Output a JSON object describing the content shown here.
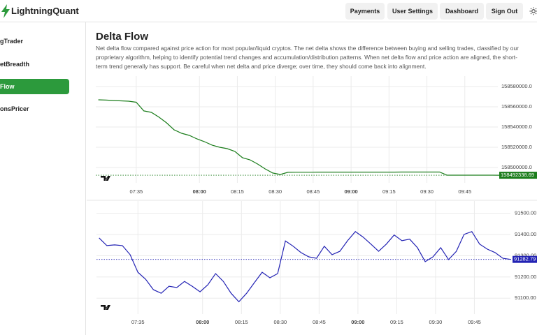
{
  "header": {
    "brand": "LightningQuant",
    "nav": [
      "Payments",
      "User Settings",
      "Dashboard",
      "Sign Out"
    ]
  },
  "sidebar": {
    "items": [
      "gTrader",
      "etBreadth",
      "Flow",
      "onsPricer"
    ]
  },
  "page": {
    "title": "Delta Flow",
    "description": "Net delta flow compared against price action for most popular/liquid cryptos. The net delta shows the difference between buying and selling trades, classified by our proprietary algorithm, helping to identify potential trend changes and accumulation/distribution patterns. When net delta flow and price action are aligned, the short-term trend generally has support. Be careful when net delta and price diverge; over time, they should come back into alignment."
  },
  "chart_data": [
    {
      "type": "line",
      "x": [
        "07:20",
        "07:23",
        "07:26",
        "07:29",
        "07:32",
        "07:35",
        "07:38",
        "07:41",
        "07:44",
        "07:47",
        "07:50",
        "07:53",
        "07:56",
        "07:59",
        "08:02",
        "08:05",
        "08:08",
        "08:11",
        "08:14",
        "08:17",
        "08:20",
        "08:23",
        "08:26",
        "08:29",
        "08:32",
        "08:35",
        "08:38",
        "08:41",
        "08:44",
        "08:47",
        "08:50",
        "08:53",
        "08:56",
        "08:59",
        "09:02",
        "09:05",
        "09:08",
        "09:11",
        "09:14",
        "09:17",
        "09:20",
        "09:23",
        "09:26",
        "09:29",
        "09:32",
        "09:35",
        "09:38",
        "09:41",
        "09:44",
        "09:47",
        "09:50",
        "09:53",
        "09:56",
        "09:59"
      ],
      "series": [
        {
          "color": "#1b7d1b",
          "values": [
            158566900,
            158566600,
            158566200,
            158565900,
            158565500,
            158564500,
            158555900,
            158554500,
            158549700,
            158544100,
            158537200,
            158533800,
            158531700,
            158528300,
            158525500,
            158522100,
            158520000,
            158518600,
            158515900,
            158509700,
            158507600,
            158503400,
            158498600,
            158494500,
            158493100,
            158495200,
            158495300,
            158495300,
            158495300,
            158495400,
            158495400,
            158495400,
            158495400,
            158495400,
            158495400,
            158495400,
            158495400,
            158495400,
            158495400,
            158495400,
            158495500,
            158495500,
            158495500,
            158495500,
            158495500,
            158495500,
            158492400,
            158492400,
            158492400,
            158492400,
            158492400,
            158492400,
            158492400,
            158492338.69
          ]
        }
      ],
      "xlim": [
        "07:19",
        "10:00"
      ],
      "xticks": [
        "07:35",
        "08:00",
        "08:15",
        "08:30",
        "08:45",
        "09:00",
        "09:15",
        "09:30",
        "09:45"
      ],
      "ylim": [
        158484800,
        158587600
      ],
      "yticks": [
        {
          "value": 158500000,
          "label": "158500000.0"
        },
        {
          "value": 158520000,
          "label": "158520000.0"
        },
        {
          "value": 158540000,
          "label": "158540000.0"
        },
        {
          "value": 158560000,
          "label": "158560000.0"
        },
        {
          "value": 158580000,
          "label": "158580000.0"
        }
      ],
      "grid": true
    },
    {
      "type": "line",
      "x": [
        "07:20",
        "07:23",
        "07:26",
        "07:29",
        "07:32",
        "07:35",
        "07:38",
        "07:41",
        "07:44",
        "07:47",
        "07:50",
        "07:53",
        "07:56",
        "07:59",
        "08:02",
        "08:05",
        "08:08",
        "08:11",
        "08:14",
        "08:17",
        "08:20",
        "08:23",
        "08:26",
        "08:29",
        "08:32",
        "08:35",
        "08:38",
        "08:41",
        "08:44",
        "08:47",
        "08:50",
        "08:53",
        "08:56",
        "08:59",
        "09:02",
        "09:05",
        "09:08",
        "09:11",
        "09:14",
        "09:17",
        "09:20",
        "09:23",
        "09:26",
        "09:29",
        "09:32",
        "09:35",
        "09:38",
        "09:41",
        "09:44",
        "09:47",
        "09:50",
        "09:53",
        "09:56",
        "09:59"
      ],
      "series": [
        {
          "color": "#2323b4",
          "values": [
            91384,
            91348,
            91351,
            91348,
            91305,
            91222,
            91189,
            91140,
            91123,
            91156,
            91150,
            91179,
            91156,
            91130,
            91163,
            91216,
            91179,
            91123,
            91083,
            91123,
            91173,
            91222,
            91196,
            91216,
            91370,
            91345,
            91315,
            91295,
            91288,
            91345,
            91305,
            91321,
            91371,
            91414,
            91388,
            91355,
            91321,
            91355,
            91398,
            91371,
            91378,
            91338,
            91272,
            91295,
            91338,
            91282,
            91321,
            91401,
            91414,
            91355,
            91331,
            91315,
            91288,
            91282.79
          ]
        }
      ],
      "xlim": [
        "07:19",
        "10:00"
      ],
      "xticks": [
        "07:35",
        "08:00",
        "08:15",
        "08:30",
        "08:45",
        "09:00",
        "09:15",
        "09:30",
        "09:45"
      ],
      "ylim": [
        91025,
        91545
      ],
      "yticks": [
        {
          "value": 91100,
          "label": "91100.00"
        },
        {
          "value": 91200,
          "label": "91200.00"
        },
        {
          "value": 91300,
          "label": "91300.00"
        },
        {
          "value": 91400,
          "label": "91400.00"
        },
        {
          "value": 91500,
          "label": "91500.00"
        }
      ],
      "grid": true
    }
  ]
}
